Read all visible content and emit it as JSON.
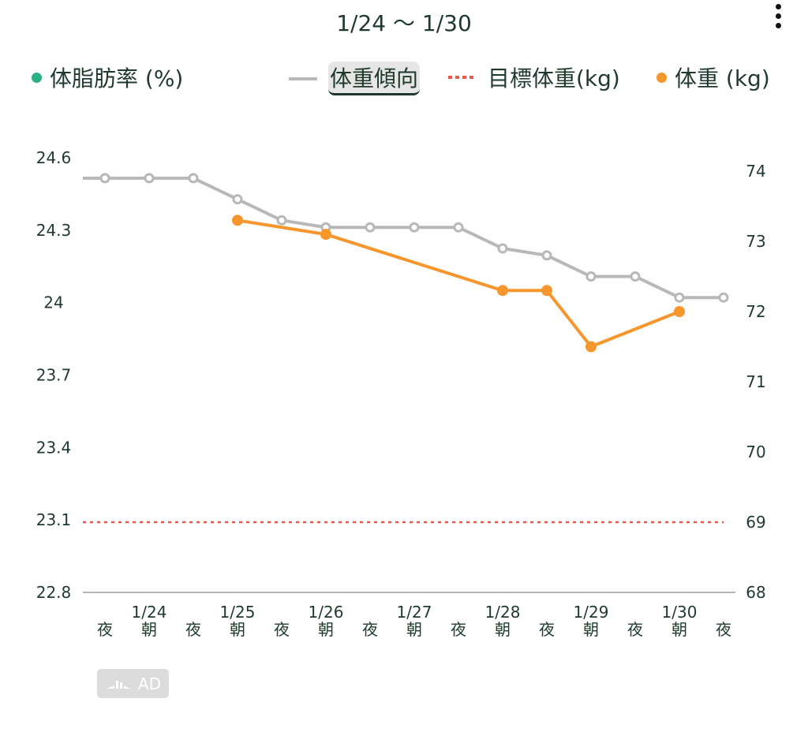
{
  "header": {
    "title": "1/24 〜 1/30",
    "menu_icon": "more-vertical-icon"
  },
  "legend": [
    {
      "label": "体脂肪率 (%)",
      "color": "#2bb085",
      "kind": "dot"
    },
    {
      "label": "体重傾向",
      "color": "#b8b8b8",
      "kind": "line",
      "selected": true
    },
    {
      "label": "目標体重(kg)",
      "color": "#e8584f",
      "kind": "dotted"
    },
    {
      "label": "体重 (kg)",
      "color": "#f7962c",
      "kind": "dot"
    }
  ],
  "ad": {
    "label": "AD"
  },
  "chart_data": {
    "type": "line",
    "title": "1/24 〜 1/30",
    "slots": [
      "夜",
      "朝",
      "夜",
      "朝",
      "夜",
      "朝",
      "夜",
      "朝",
      "夜",
      "朝",
      "夜",
      "朝",
      "夜",
      "朝",
      "夜"
    ],
    "date_labels": [
      "",
      "1/24",
      "",
      "1/25",
      "",
      "1/26",
      "",
      "1/27",
      "",
      "1/28",
      "",
      "1/29",
      "",
      "1/30",
      ""
    ],
    "left_axis": {
      "label": "体脂肪率 (%)",
      "ticks": [
        "24.6",
        "24.3",
        "24",
        "23.7",
        "23.4",
        "23.1",
        "22.8"
      ],
      "range": [
        22.8,
        24.6
      ]
    },
    "right_axis": {
      "label": "kg",
      "ticks": [
        "74",
        "73",
        "72",
        "71",
        "70",
        "69",
        "68"
      ],
      "range": [
        68,
        74
      ]
    },
    "series": [
      {
        "name": "体重傾向",
        "color": "#b8b8b8",
        "axis": "right",
        "values": [
          73.9,
          73.9,
          73.9,
          73.6,
          73.3,
          73.2,
          73.2,
          73.2,
          73.2,
          72.9,
          72.8,
          72.5,
          72.5,
          72.2,
          72.2
        ]
      },
      {
        "name": "体重 (kg)",
        "color": "#f7962c",
        "axis": "right",
        "values": [
          null,
          null,
          null,
          73.3,
          null,
          73.1,
          null,
          null,
          null,
          72.3,
          72.3,
          71.5,
          null,
          72.0,
          null
        ]
      },
      {
        "name": "目標体重(kg)",
        "color": "#e8584f",
        "axis": "right",
        "constant": 69
      }
    ]
  }
}
